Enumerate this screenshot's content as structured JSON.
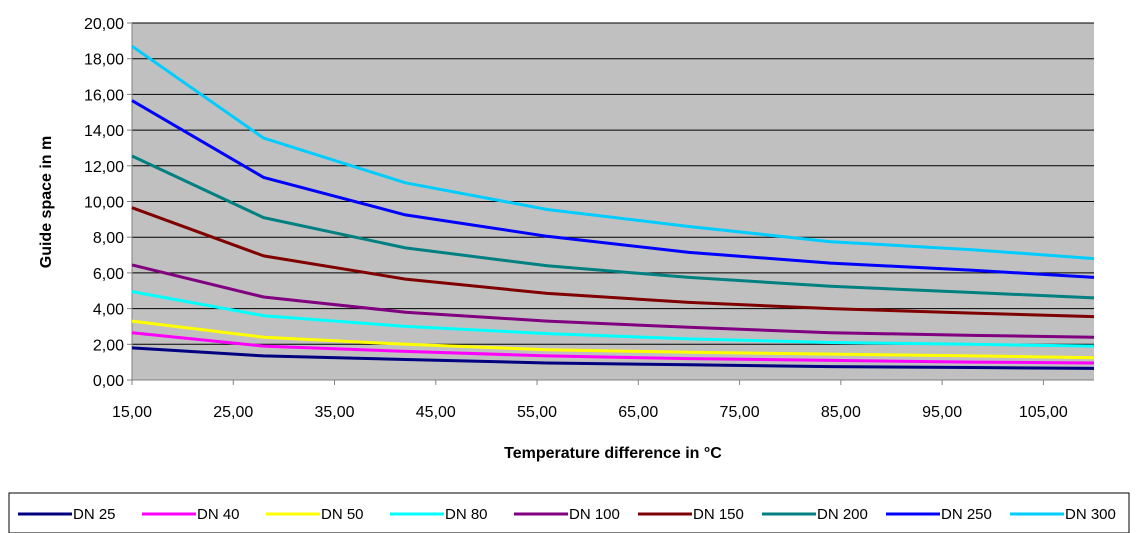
{
  "chart_data": {
    "type": "line",
    "xlabel": "Temperature difference in °C",
    "ylabel": "Guide space in m",
    "xlim": [
      15,
      110
    ],
    "ylim": [
      0,
      20
    ],
    "grid": true,
    "legend_position": "bottom",
    "x_ticks": [
      "15,00",
      "25,00",
      "35,00",
      "45,00",
      "55,00",
      "65,00",
      "75,00",
      "85,00",
      "95,00",
      "105,00"
    ],
    "y_ticks": [
      "0,00",
      "2,00",
      "4,00",
      "6,00",
      "8,00",
      "10,00",
      "12,00",
      "14,00",
      "16,00",
      "18,00",
      "20,00"
    ],
    "x": [
      15,
      28,
      42,
      56,
      70,
      84,
      98,
      110
    ],
    "series": [
      {
        "name": "DN 25",
        "color": "#000080",
        "values": [
          1.8,
          1.35,
          1.15,
          0.95,
          0.85,
          0.75,
          0.7,
          0.65
        ]
      },
      {
        "name": "DN 40",
        "color": "#FF00FF",
        "values": [
          2.65,
          1.9,
          1.6,
          1.35,
          1.2,
          1.1,
          1.0,
          0.95
        ]
      },
      {
        "name": "DN 50",
        "color": "#FFFF00",
        "values": [
          3.3,
          2.4,
          2.0,
          1.7,
          1.55,
          1.45,
          1.35,
          1.25
        ]
      },
      {
        "name": "DN 80",
        "color": "#00FFFF",
        "values": [
          4.95,
          3.6,
          3.0,
          2.6,
          2.3,
          2.1,
          2.0,
          1.9
        ]
      },
      {
        "name": "DN 100",
        "color": "#800080",
        "values": [
          6.45,
          4.65,
          3.8,
          3.3,
          2.95,
          2.65,
          2.5,
          2.4
        ]
      },
      {
        "name": "DN 150",
        "color": "#800000",
        "values": [
          9.65,
          6.95,
          5.65,
          4.85,
          4.35,
          4.0,
          3.75,
          3.55
        ]
      },
      {
        "name": "DN 200",
        "color": "#008080",
        "values": [
          12.55,
          9.1,
          7.4,
          6.4,
          5.75,
          5.25,
          4.9,
          4.6
        ]
      },
      {
        "name": "DN 250",
        "color": "#0000FF",
        "values": [
          15.65,
          11.35,
          9.25,
          8.05,
          7.15,
          6.55,
          6.15,
          5.75
        ]
      },
      {
        "name": "DN 300",
        "color": "#00CCFF",
        "values": [
          18.7,
          13.55,
          11.05,
          9.55,
          8.6,
          7.75,
          7.3,
          6.8
        ]
      }
    ]
  },
  "colors": {
    "plot_background": "#C0C0C0",
    "grid": "#000000",
    "axis": "#808080"
  }
}
